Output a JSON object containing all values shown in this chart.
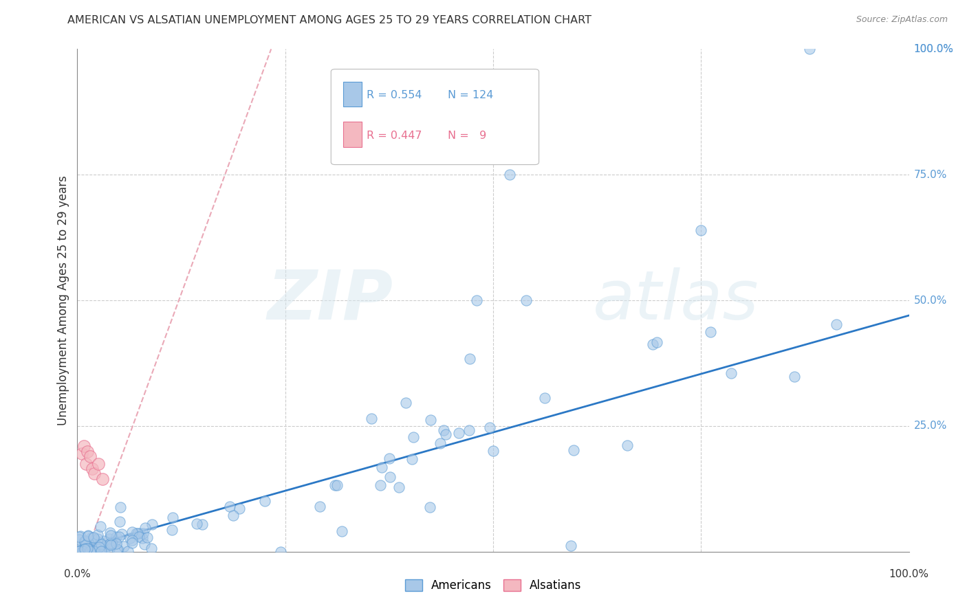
{
  "title": "AMERICAN VS ALSATIAN UNEMPLOYMENT AMONG AGES 25 TO 29 YEARS CORRELATION CHART",
  "source": "Source: ZipAtlas.com",
  "ylabel": "Unemployment Among Ages 25 to 29 years",
  "xlim": [
    0,
    1.0
  ],
  "ylim": [
    0,
    1.0
  ],
  "ticks": [
    0.0,
    0.25,
    0.5,
    0.75,
    1.0
  ],
  "tick_labels": [
    "0.0%",
    "25.0%",
    "50.0%",
    "75.0%",
    "100.0%"
  ],
  "american_color": "#a8c8e8",
  "alsatian_color": "#f4b8c0",
  "american_edge_color": "#5b9bd5",
  "alsatian_edge_color": "#e87090",
  "american_R": 0.554,
  "american_N": 124,
  "alsatian_R": 0.447,
  "alsatian_N": 9,
  "watermark_zip": "ZIP",
  "watermark_atlas": "atlas",
  "background_color": "#ffffff",
  "grid_color": "#cccccc",
  "right_tick_color": "#5b9bd5",
  "legend_R_color_am": "#5b9bd5",
  "legend_R_color_al": "#e87090"
}
